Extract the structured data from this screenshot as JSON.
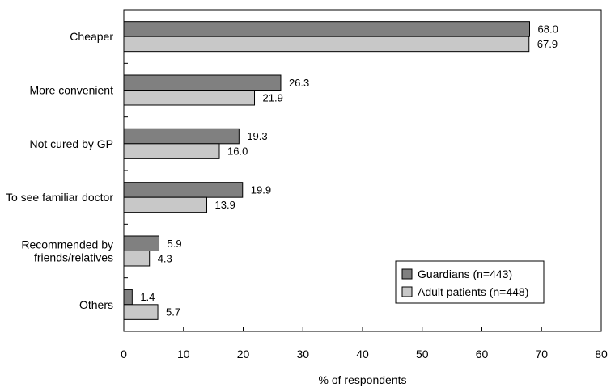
{
  "chart_data": {
    "type": "bar",
    "orientation": "horizontal",
    "categories": [
      "Cheaper",
      "More convenient",
      "Not cured by GP",
      "To see familiar doctor",
      "Recommended by\nfriends/relatives",
      "Others"
    ],
    "series": [
      {
        "name": "Guardians (n=443)",
        "values": [
          68.0,
          26.3,
          19.3,
          19.9,
          5.9,
          1.4
        ],
        "color": "#808080"
      },
      {
        "name": "Adult patients (n=448)",
        "values": [
          67.9,
          21.9,
          16.0,
          13.9,
          4.3,
          5.7
        ],
        "color": "#c8c8c8"
      }
    ],
    "data_labels": [
      [
        "68.0",
        "26.3",
        "19.3",
        "19.9",
        "5.9",
        "1.4"
      ],
      [
        "67.9",
        "21.9",
        "16.0",
        "13.9",
        "4.3",
        "5.7"
      ]
    ],
    "xlabel": "% of respondents",
    "ylabel": "",
    "xlim": [
      0,
      80
    ],
    "xticks": [
      "0",
      "10",
      "20",
      "30",
      "40",
      "50",
      "60",
      "70",
      "80"
    ],
    "grid": false,
    "legend_position": "bottom-right"
  }
}
